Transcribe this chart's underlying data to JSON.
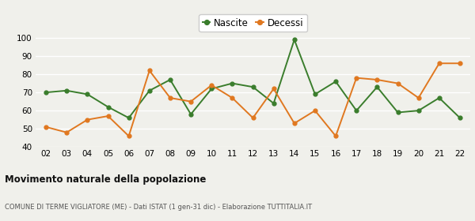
{
  "years": [
    "02",
    "03",
    "04",
    "05",
    "06",
    "07",
    "08",
    "09",
    "10",
    "11",
    "12",
    "13",
    "14",
    "15",
    "16",
    "17",
    "18",
    "19",
    "20",
    "21",
    "22"
  ],
  "nascite": [
    70,
    71,
    69,
    62,
    56,
    71,
    77,
    58,
    72,
    75,
    73,
    64,
    99,
    69,
    76,
    60,
    73,
    59,
    60,
    67,
    56
  ],
  "decessi": [
    51,
    48,
    55,
    57,
    46,
    82,
    67,
    65,
    74,
    67,
    56,
    72,
    53,
    60,
    46,
    78,
    77,
    75,
    67,
    86,
    86
  ],
  "nascite_color": "#3a7d2c",
  "decessi_color": "#e07820",
  "background_color": "#f0f0eb",
  "grid_color": "#ffffff",
  "title": "Movimento naturale della popolazione",
  "subtitle": "COMUNE DI TERME VIGLIATORE (ME) - Dati ISTAT (1 gen-31 dic) - Elaborazione TUTTITALIA.IT",
  "legend_nascite": "Nascite",
  "legend_decessi": "Decessi",
  "ylim": [
    40,
    102
  ],
  "yticks": [
    40,
    50,
    60,
    70,
    80,
    90,
    100
  ]
}
